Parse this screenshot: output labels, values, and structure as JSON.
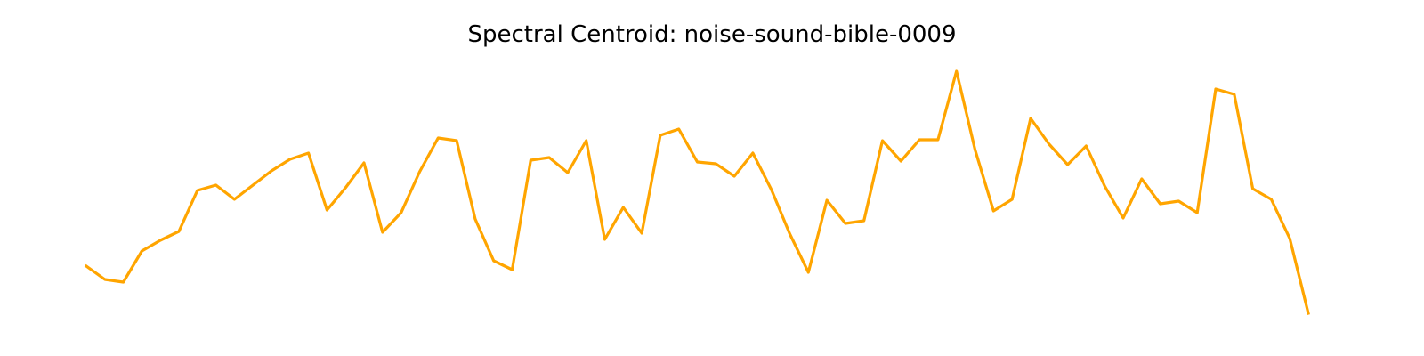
{
  "chart_data": {
    "type": "line",
    "title": "Spectral Centroid: noise-sound-bible-0009",
    "xlabel": "",
    "ylabel": "",
    "axes_visible": false,
    "grid": false,
    "series": [
      {
        "color": "#FFA500",
        "values": [
          223,
          238,
          241,
          206,
          194,
          184,
          138,
          132,
          148,
          132,
          116,
          103,
          96,
          160,
          135,
          107,
          185,
          163,
          117,
          79,
          82,
          170,
          217,
          227,
          104,
          101,
          118,
          82,
          193,
          157,
          186,
          76,
          69,
          106,
          108,
          122,
          96,
          137,
          187,
          230,
          149,
          175,
          172,
          82,
          105,
          81,
          81,
          4,
          92,
          161,
          148,
          57,
          86,
          109,
          88,
          133,
          169,
          125,
          153,
          150,
          163,
          24,
          30,
          136,
          148,
          192,
          276
        ]
      }
    ]
  }
}
